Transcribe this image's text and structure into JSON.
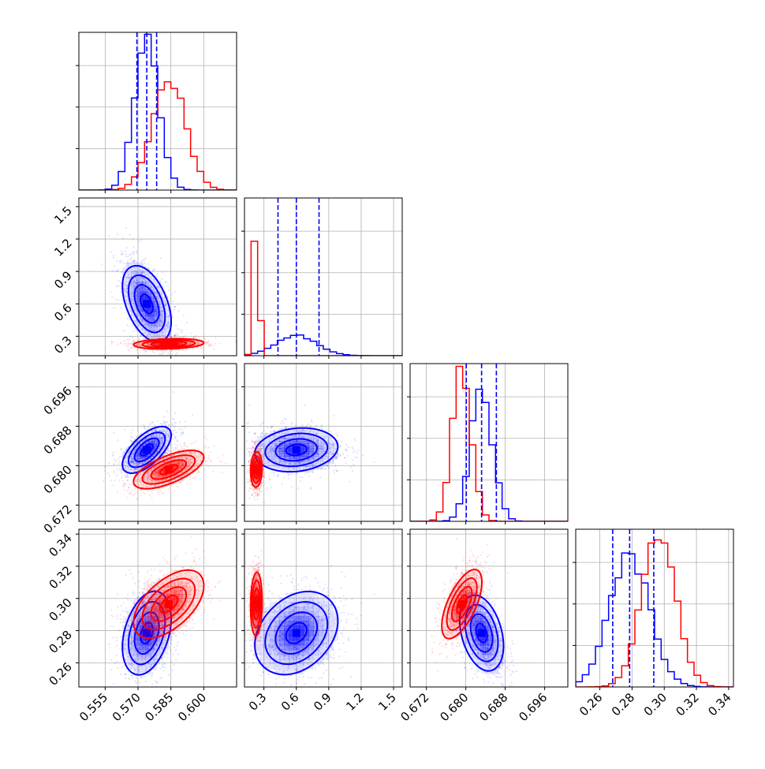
{
  "chart_data": {
    "type": "corner",
    "title": "",
    "parameters": [
      "",
      "",
      "",
      ""
    ],
    "grid": true,
    "series": [
      {
        "name": "",
        "color": "#0000ff",
        "means": [
          0.574,
          0.6,
          0.6832,
          0.2785
        ],
        "stds": [
          0.0055,
          0.19,
          0.0022,
          0.0125
        ],
        "correlations": [
          [
            0,
            1,
            -0.55
          ],
          [
            0,
            2,
            0.55
          ],
          [
            0,
            3,
            0.2
          ],
          [
            1,
            2,
            0.0
          ],
          [
            1,
            3,
            0.15
          ],
          [
            2,
            3,
            -0.45
          ]
        ],
        "quantile_lines": [
          [
            0.5695,
            0.574,
            0.5785
          ],
          [
            0.43,
            0.6,
            0.81
          ],
          [
            0.6801,
            0.6832,
            0.6862
          ],
          [
            0.268,
            0.2785,
            0.2935
          ]
        ]
      },
      {
        "name": "",
        "color": "#ff0000",
        "means": [
          0.584,
          0.23,
          0.6792,
          0.2965
        ],
        "stds": [
          0.0075,
          0.025,
          0.0019,
          0.0105
        ],
        "correlations": [
          [
            0,
            1,
            0.1
          ],
          [
            0,
            2,
            0.55
          ],
          [
            0,
            3,
            0.45
          ],
          [
            1,
            2,
            0.0
          ],
          [
            1,
            3,
            0.0
          ],
          [
            2,
            3,
            0.55
          ]
        ]
      }
    ],
    "axes": [
      {
        "range": [
          0.543,
          0.615
        ],
        "ticks": [
          0.555,
          0.57,
          0.585,
          0.6
        ],
        "tick_labels": [
          "0.555",
          "0.570",
          "0.585",
          "0.600"
        ]
      },
      {
        "range": [
          0.12,
          1.58
        ],
        "ticks": [
          0.3,
          0.6,
          0.9,
          1.2,
          1.5
        ],
        "tick_labels": [
          "0.3",
          "0.6",
          "0.9",
          "1.2",
          "1.5"
        ]
      },
      {
        "range": [
          0.6687,
          0.7007
        ],
        "ticks": [
          0.672,
          0.68,
          0.688,
          0.696
        ],
        "tick_labels": [
          "0.672",
          "0.680",
          "0.688",
          "0.696"
        ]
      },
      {
        "range": [
          0.245,
          0.343
        ],
        "ticks": [
          0.26,
          0.28,
          0.3,
          0.32,
          0.34
        ],
        "tick_labels": [
          "0.26",
          "0.28",
          "0.30",
          "0.32",
          "0.34"
        ]
      }
    ]
  }
}
